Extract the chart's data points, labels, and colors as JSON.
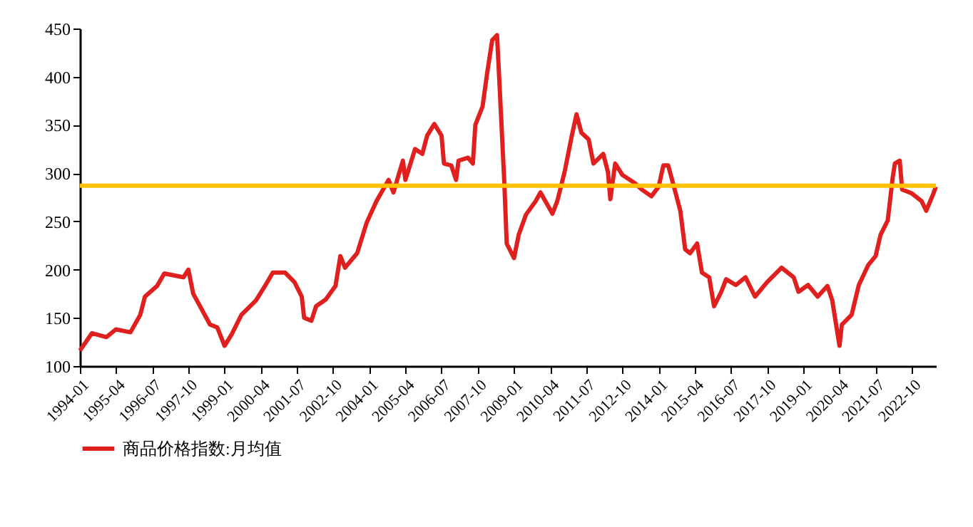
{
  "chart_data": {
    "type": "line",
    "x": [
      "1994-01",
      "1994-06",
      "1994-12",
      "1995-04",
      "1995-10",
      "1996-02",
      "1996-04",
      "1996-09",
      "1996-12",
      "1997-08",
      "1997-10",
      "1997-12",
      "1998-07",
      "1998-10",
      "1999-01",
      "1999-04",
      "1999-08",
      "2000-02",
      "2000-06",
      "2000-09",
      "2001-02",
      "2001-06",
      "2001-09",
      "2001-10",
      "2002-01",
      "2002-03",
      "2002-07",
      "2002-11",
      "2003-01",
      "2003-03",
      "2003-08",
      "2003-12",
      "2004-04",
      "2004-09",
      "2004-11",
      "2005-03",
      "2005-04",
      "2005-08",
      "2005-11",
      "2006-01",
      "2006-04",
      "2006-07",
      "2006-08",
      "2006-11",
      "2007-01",
      "2007-02",
      "2007-06",
      "2007-08",
      "2007-09",
      "2007-12",
      "2008-02",
      "2008-04",
      "2008-06",
      "2008-07",
      "2008-09",
      "2008-10",
      "2009-01",
      "2009-03",
      "2009-06",
      "2009-10",
      "2009-12",
      "2010-02",
      "2010-05",
      "2010-07",
      "2010-10",
      "2011-01",
      "2011-03",
      "2011-05",
      "2011-08",
      "2011-10",
      "2012-02",
      "2012-04",
      "2012-05",
      "2012-07",
      "2012-10",
      "2013-03",
      "2013-06",
      "2013-10",
      "2014-01",
      "2014-03",
      "2014-05",
      "2014-08",
      "2014-10",
      "2014-12",
      "2015-02",
      "2015-05",
      "2015-07",
      "2015-10",
      "2015-12",
      "2016-03",
      "2016-05",
      "2016-09",
      "2017-01",
      "2017-05",
      "2017-10",
      "2018-04",
      "2018-09",
      "2018-11",
      "2019-03",
      "2019-07",
      "2019-11",
      "2020-01",
      "2020-04",
      "2020-05",
      "2020-09",
      "2020-12",
      "2021-04",
      "2021-07",
      "2021-09",
      "2021-12",
      "2022-02",
      "2022-03",
      "2022-05",
      "2022-06",
      "2022-10",
      "2023-02",
      "2023-04",
      "2023-07",
      "2023-08"
    ],
    "series": [
      {
        "name": "商品价格指数:月均值",
        "color": "#e0201e",
        "values": [
          116,
          134,
          130,
          138,
          135,
          153,
          172,
          183,
          196,
          192,
          200,
          175,
          143,
          140,
          121,
          133,
          153,
          168,
          184,
          197,
          197,
          187,
          172,
          150,
          147,
          162,
          169,
          183,
          214,
          202,
          217,
          249,
          271,
          293,
          280,
          313,
          293,
          325,
          320,
          339,
          351,
          339,
          310,
          308,
          293,
          313,
          316,
          310,
          350,
          369,
          406,
          438,
          443,
          394,
          290,
          227,
          212,
          236,
          257,
          271,
          280,
          271,
          258,
          271,
          301,
          339,
          361,
          342,
          335,
          310,
          320,
          301,
          273,
          310,
          298,
          290,
          283,
          276,
          286,
          308,
          308,
          280,
          261,
          221,
          217,
          227,
          197,
          192,
          162,
          177,
          190,
          184,
          192,
          172,
          187,
          202,
          192,
          177,
          184,
          172,
          183,
          168,
          121,
          143,
          153,
          184,
          205,
          214,
          236,
          251,
          295,
          310,
          313,
          283,
          279,
          271,
          261,
          279,
          286
        ]
      }
    ],
    "xlim": [
      "1994-01",
      "2023-08"
    ],
    "xticks": [
      "1994-01",
      "1995-04",
      "1996-07",
      "1997-10",
      "1999-01",
      "2000-04",
      "2001-07",
      "2002-10",
      "2004-01",
      "2005-04",
      "2006-07",
      "2007-10",
      "2009-01",
      "2010-04",
      "2011-07",
      "2012-10",
      "2014-01",
      "2015-04",
      "2016-07",
      "2017-10",
      "2019-01",
      "2020-04",
      "2021-07",
      "2022-10"
    ],
    "ylim": [
      100,
      450
    ],
    "yticks": [
      100,
      150,
      200,
      250,
      300,
      350,
      400,
      450
    ],
    "ref_lines": [
      {
        "axis": "y",
        "value": 287,
        "color": "#ffc000"
      }
    ],
    "grid": false,
    "legend": "bottom"
  }
}
